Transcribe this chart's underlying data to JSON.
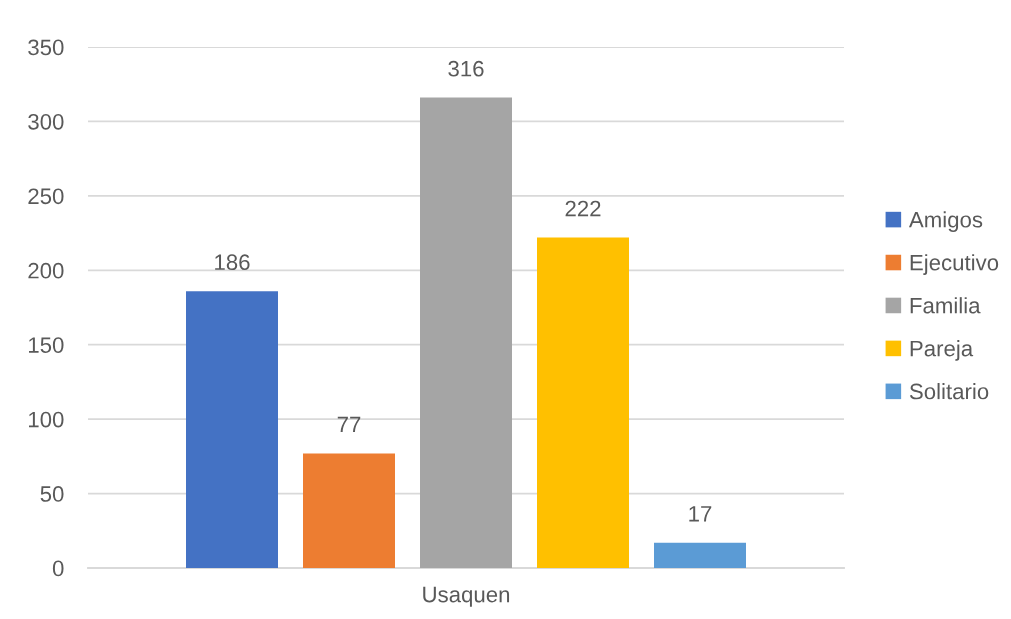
{
  "chart_data": {
    "type": "bar",
    "categories": [
      "Usaquen"
    ],
    "series": [
      {
        "name": "Amigos",
        "color": "#4472c4",
        "values": [
          186
        ]
      },
      {
        "name": "Ejecutivo",
        "color": "#ed7d31",
        "values": [
          77
        ]
      },
      {
        "name": "Familia",
        "color": "#a5a5a5",
        "values": [
          316
        ]
      },
      {
        "name": "Pareja",
        "color": "#ffc000",
        "values": [
          222
        ]
      },
      {
        "name": "Solitario",
        "color": "#5b9bd5",
        "values": [
          17
        ]
      }
    ],
    "ylim": [
      0,
      350
    ],
    "yticks": [
      0,
      50,
      100,
      150,
      200,
      250,
      300,
      350
    ],
    "grid": "y",
    "legend": "right",
    "data_labels": true
  }
}
